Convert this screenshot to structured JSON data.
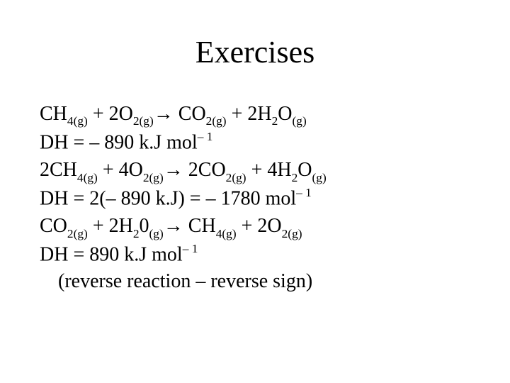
{
  "slide": {
    "title": "Exercises",
    "title_fontsize": 44,
    "body_fontsize": 28,
    "background_color": "#ffffff",
    "text_color": "#000000",
    "font_family": "Times New Roman",
    "lines": [
      {
        "tokens": [
          "CH",
          "4(g)",
          " + 2O",
          "2(g)",
          " ",
          " CO",
          "2(g)",
          " + 2H",
          "2",
          "O",
          "(g)"
        ],
        "types": [
          "t",
          "sub",
          "t",
          "sub",
          "arrow",
          "t",
          "sub",
          "t",
          "sub",
          "t",
          "sub"
        ]
      },
      {
        "tokens": [
          "D",
          "H = – 890 k.J mol",
          "– 1"
        ],
        "types": [
          "t",
          "t",
          "sup"
        ]
      },
      {
        "tokens": [
          "2CH",
          "4(g)",
          " + 4O",
          "2(g)",
          " ",
          " 2CO",
          "2(g)",
          " + 4H",
          "2",
          "O",
          "(g)"
        ],
        "types": [
          "t",
          "sub",
          "t",
          "sub",
          "arrow",
          "t",
          "sub",
          "t",
          "sub",
          "t",
          "sub"
        ]
      },
      {
        "tokens": [
          "D",
          "H = 2(– 890 k.J) = – 1780 mol",
          "– 1"
        ],
        "types": [
          "t",
          "t",
          "sup"
        ]
      },
      {
        "tokens": [
          "CO",
          "2(g)",
          " + 2H",
          "2",
          "0",
          "(g)",
          " ",
          " CH",
          "4(g)",
          " + 2O",
          "2(g)"
        ],
        "types": [
          "t",
          "sub",
          "t",
          "sub",
          "t",
          "sub",
          "arrow",
          "t",
          "sub",
          "t",
          "sub"
        ]
      },
      {
        "tokens": [
          "D",
          "H = 890 k.J mol",
          "– 1"
        ],
        "types": [
          "t",
          "t",
          "sup"
        ]
      },
      {
        "tokens": [
          "(reverse reaction – reverse sign)"
        ],
        "types": [
          "t"
        ],
        "indent": true
      }
    ],
    "arrow_glyph": "→",
    "delta_glyph": "D"
  }
}
